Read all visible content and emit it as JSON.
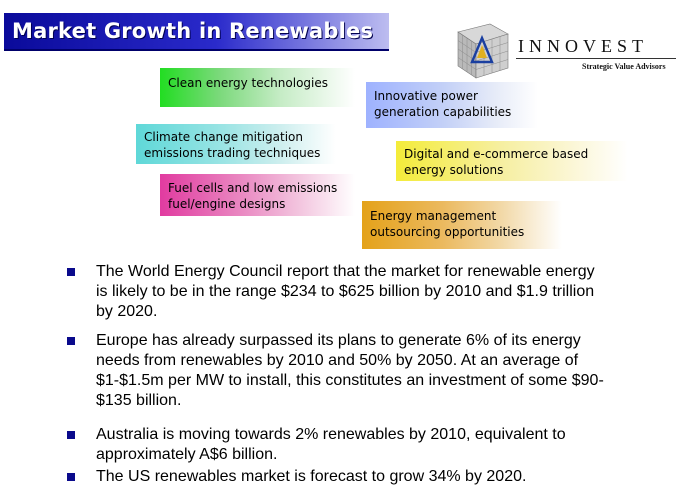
{
  "header": {
    "title": "Market Growth in Renewables"
  },
  "logo": {
    "name": "INNOVEST",
    "tagline": "Strategic Value Advisors",
    "icon": "cube-grid-logo-icon"
  },
  "tags": [
    {
      "lines": [
        "Clean energy technologies"
      ],
      "color": "#22dd22"
    },
    {
      "lines": [
        "Innovative power",
        "generation capabilities"
      ],
      "color": "#9eb2ff"
    },
    {
      "lines": [
        "Climate change mitigation",
        "emissions trading techniques"
      ],
      "color": "#5fd8d8"
    },
    {
      "lines": [
        "Digital and e-commerce based",
        "energy solutions"
      ],
      "color": "#f4ec3a"
    },
    {
      "lines": [
        "Fuel cells and low emissions",
        "fuel/engine designs"
      ],
      "color": "#e13ba0"
    },
    {
      "lines": [
        "Energy management",
        "outsourcing opportunities"
      ],
      "color": "#e4a21a"
    }
  ],
  "bullet_color": "#0a0a8c",
  "bullets": [
    {
      "lines": [
        "The World Energy Council report that the market for renewable energy",
        "is likely to be in the range $234 to $625 billion by 2010 and $1.9 trillion",
        "by 2020."
      ]
    },
    {
      "lines": [
        "Europe has already surpassed its plans to generate 6% of its energy",
        "needs from renewables by 2010 and 50% by 2050. At an average of",
        "$1-$1.5m per MW to install, this constitutes an investment of some $90-",
        "$135 billion."
      ]
    },
    {
      "lines": [
        "Australia is moving towards 2% renewables by 2010, equivalent to",
        "approximately A$6 billion."
      ]
    },
    {
      "lines": [
        "The US renewables market is forecast to grow 34% by 2020."
      ]
    }
  ]
}
